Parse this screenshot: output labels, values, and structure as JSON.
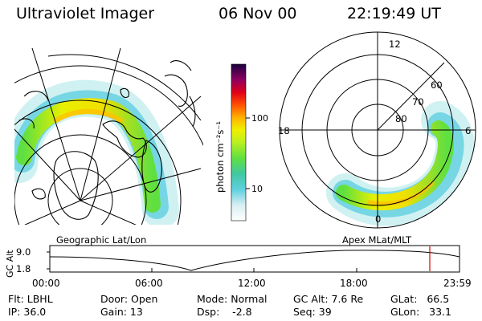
{
  "header": {
    "instrument": "Ultraviolet Imager",
    "date": "06 Nov 00",
    "time": "22:19:49 UT"
  },
  "colorbar": {
    "unit": "photon cm⁻²s⁻¹",
    "ticks": [
      "100",
      "10"
    ]
  },
  "left_map": {
    "label": "Geographic Lat/Lon"
  },
  "right_map": {
    "label": "Apex MLat/MLT",
    "mlt_labels": [
      "12",
      "18",
      "6",
      "0"
    ],
    "lat_labels": [
      "60",
      "70",
      "80"
    ]
  },
  "altitude_plot": {
    "ylabel": "GC Alt",
    "y_ticks": [
      "9.0",
      "1.8"
    ],
    "x_ticks": [
      "00:00",
      "06:00",
      "12:00",
      "18:00",
      "23:59"
    ]
  },
  "info": {
    "filter": "Flt: LBHL",
    "ip": "IP: 36.0",
    "door": "Door: Open",
    "gain": "Gain: 13",
    "mode": "Mode: Normal",
    "dsp": "Dsp:    -2.8",
    "gc_alt": "GC Alt: 7.6 Re",
    "seq": "Seq: 39",
    "glat": "GLat:   66.5",
    "glon": "GLon:   33.1"
  },
  "colors": {
    "marker": "#e00000"
  }
}
